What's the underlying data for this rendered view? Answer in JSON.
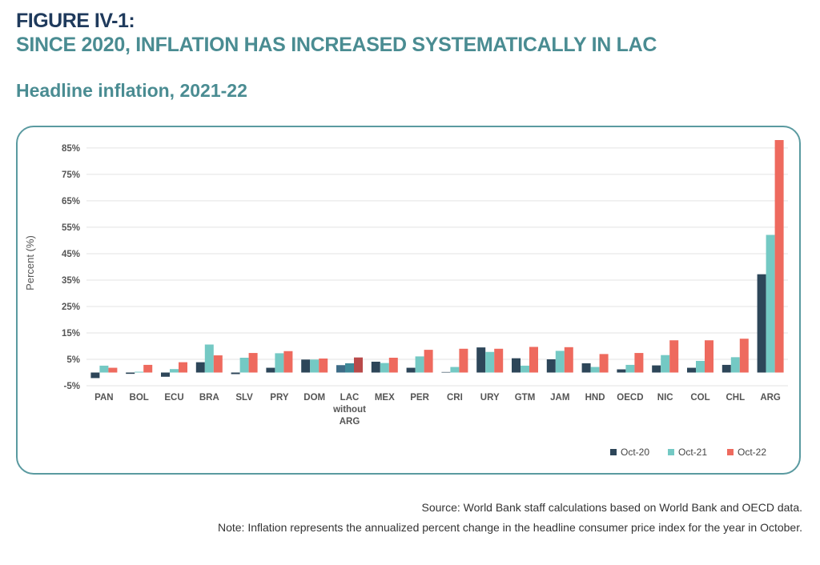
{
  "figure": {
    "label": "FIGURE IV-1:",
    "title": "SINCE 2020, INFLATION HAS INCREASED SYSTEMATICALLY IN LAC",
    "subtitle": "Headline inflation, 2021-22"
  },
  "footer": {
    "source": "Source: World Bank staff calculations based on World Bank and OECD data.",
    "note": "Note: Inflation represents the annualized percent change in the headline consumer price index for the year in October."
  },
  "colors": {
    "oct20": "#2d4659",
    "oct21": "#74c9c4",
    "oct22": "#ee6a5e",
    "lac_oct20": "#3e6c87",
    "lac_oct21": "#3e8a99",
    "lac_oct22": "#b94a4a",
    "grid": "#e3e3e3"
  },
  "chart_data": {
    "type": "bar",
    "title": "Headline inflation, 2021-22",
    "xlabel": "",
    "ylabel": "Percent (%)",
    "ylim": [
      -5,
      88
    ],
    "yticks": [
      -5,
      5,
      15,
      25,
      35,
      45,
      55,
      65,
      75,
      85
    ],
    "ytick_labels": [
      "-5%",
      "5%",
      "15%",
      "25%",
      "35%",
      "45%",
      "55%",
      "65%",
      "75%",
      "85%"
    ],
    "grid": true,
    "legend": "bottom-right",
    "categories": [
      "PAN",
      "BOL",
      "ECU",
      "BRA",
      "SLV",
      "PRY",
      "DOM",
      "LAC without ARG",
      "MEX",
      "PER",
      "CRI",
      "URY",
      "GTM",
      "JAM",
      "HND",
      "OECD",
      "NIC",
      "COL",
      "CHL",
      "ARG"
    ],
    "category_lines": [
      [
        "PAN"
      ],
      [
        "BOL"
      ],
      [
        "ECU"
      ],
      [
        "BRA"
      ],
      [
        "SLV"
      ],
      [
        "PRY"
      ],
      [
        "DOM"
      ],
      [
        "LAC",
        "without",
        "ARG"
      ],
      [
        "MEX"
      ],
      [
        "PER"
      ],
      [
        "CRI"
      ],
      [
        "URY"
      ],
      [
        "GTM"
      ],
      [
        "JAM"
      ],
      [
        "HND"
      ],
      [
        "OECD"
      ],
      [
        "NIC"
      ],
      [
        "COL"
      ],
      [
        "CHL"
      ],
      [
        "ARG"
      ]
    ],
    "series": [
      {
        "name": "Oct-20",
        "values": [
          -2.1,
          -0.5,
          -1.6,
          3.9,
          -0.6,
          1.8,
          4.9,
          2.8,
          4.1,
          1.8,
          0.2,
          9.5,
          5.4,
          5.0,
          3.5,
          1.2,
          2.7,
          1.8,
          2.9,
          37.2
        ]
      },
      {
        "name": "Oct-21",
        "values": [
          2.6,
          0.3,
          1.3,
          10.6,
          5.6,
          7.3,
          4.9,
          3.5,
          3.6,
          6.1,
          2.1,
          7.8,
          2.6,
          8.2,
          2.1,
          2.9,
          6.6,
          4.4,
          5.8,
          52.1
        ]
      },
      {
        "name": "Oct-22",
        "values": [
          1.8,
          2.9,
          3.9,
          6.5,
          7.4,
          8.1,
          5.3,
          5.7,
          5.6,
          8.6,
          9.0,
          9.0,
          9.7,
          9.6,
          7.0,
          7.4,
          12.2,
          12.2,
          12.8,
          88.0
        ]
      }
    ]
  }
}
